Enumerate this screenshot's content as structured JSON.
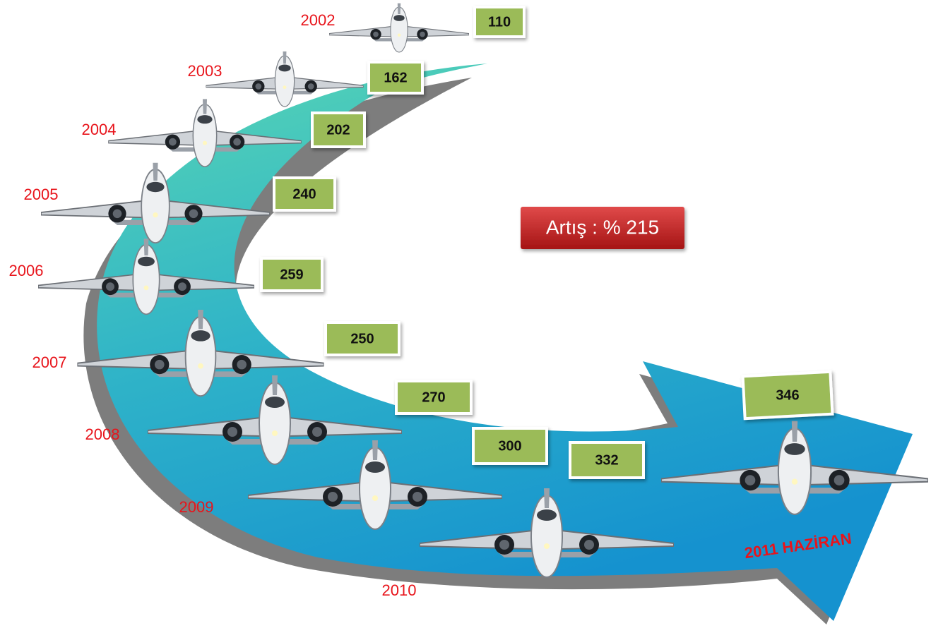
{
  "items": [
    {
      "year": "2002",
      "value": 110
    },
    {
      "year": "2003",
      "value": 162
    },
    {
      "year": "2004",
      "value": 202
    },
    {
      "year": "2005",
      "value": 240
    },
    {
      "year": "2006",
      "value": 259
    },
    {
      "year": "2007",
      "value": 250
    },
    {
      "year": "2008",
      "value": 270
    },
    {
      "year": "2009",
      "value": 300
    },
    {
      "year": "2010",
      "value": 332
    },
    {
      "year": "2011 HAZİRAN",
      "value": 346
    }
  ],
  "increase_label": "Artış : % 215"
}
